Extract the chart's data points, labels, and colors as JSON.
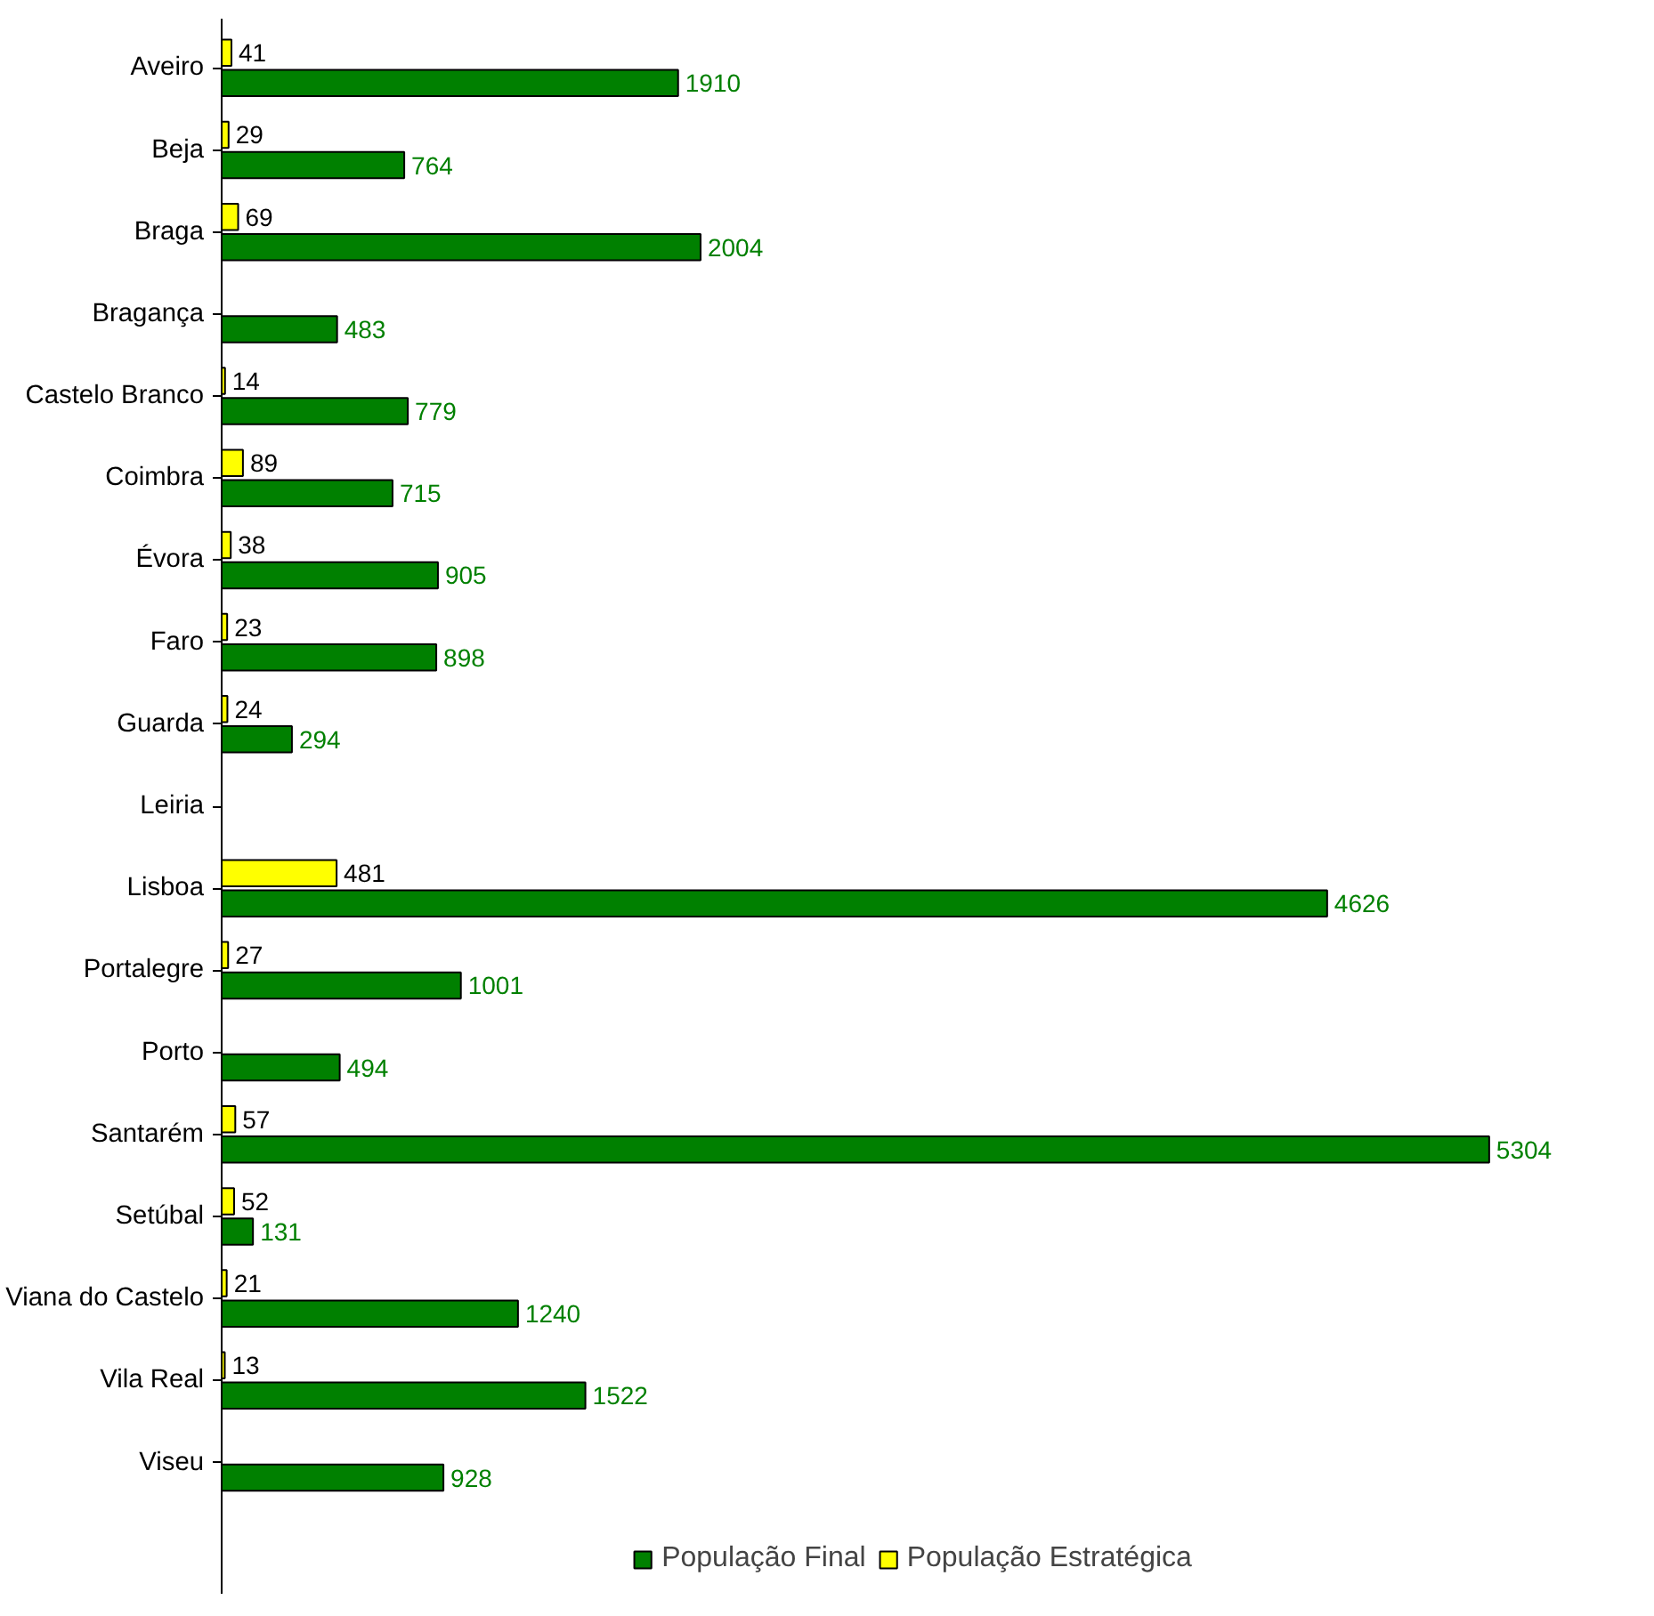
{
  "chart_data": {
    "type": "bar",
    "orientation": "horizontal",
    "data_labels": true,
    "legend": "bottom",
    "grid": false,
    "categories": [
      "Aveiro",
      "Beja",
      "Braga",
      "Bragança",
      "Castelo Branco",
      "Coimbra",
      "Évora",
      "Faro",
      "Guarda",
      "Leiria",
      "Lisboa",
      "Portalegre",
      "Porto",
      "Santarém",
      "Setúbal",
      "Viana do Castelo",
      "Vila Real",
      "Viseu"
    ],
    "series": [
      {
        "name": "População Final",
        "color": "#008000",
        "values": [
          1910,
          764,
          2004,
          483,
          779,
          715,
          905,
          898,
          294,
          null,
          4626,
          1001,
          494,
          5304,
          131,
          1240,
          1522,
          928
        ]
      },
      {
        "name": "População Estratégica",
        "color": "#ffff00",
        "values": [
          41,
          29,
          69,
          null,
          14,
          89,
          38,
          23,
          24,
          null,
          481,
          27,
          null,
          57,
          52,
          21,
          13,
          null
        ]
      }
    ]
  }
}
